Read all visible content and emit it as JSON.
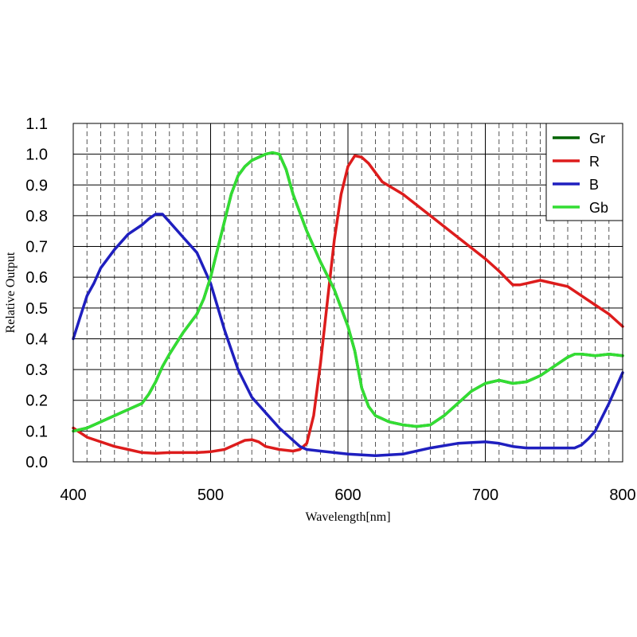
{
  "chart_data": {
    "type": "line",
    "title": "",
    "xlabel": "Wavelength[nm]",
    "ylabel": "Relative Output",
    "xlim": [
      400,
      800
    ],
    "ylim": [
      0.0,
      1.1
    ],
    "x_ticks": [
      400,
      500,
      600,
      700,
      800
    ],
    "y_ticks": [
      "0.0",
      "0.1",
      "0.2",
      "0.3",
      "0.4",
      "0.5",
      "0.6",
      "0.7",
      "0.8",
      "0.9",
      "1.0",
      "1.1"
    ],
    "grid": true,
    "legend_position": "top-right",
    "series": [
      {
        "name": "Gr",
        "color": "#006400",
        "points": [
          [
            400,
            0.1
          ],
          [
            410,
            0.11
          ],
          [
            420,
            0.13
          ],
          [
            430,
            0.15
          ],
          [
            440,
            0.17
          ],
          [
            450,
            0.19
          ],
          [
            455,
            0.22
          ],
          [
            460,
            0.26
          ],
          [
            465,
            0.31
          ],
          [
            470,
            0.35
          ],
          [
            480,
            0.42
          ],
          [
            490,
            0.48
          ],
          [
            495,
            0.53
          ],
          [
            500,
            0.6
          ],
          [
            505,
            0.69
          ],
          [
            510,
            0.78
          ],
          [
            515,
            0.87
          ],
          [
            520,
            0.93
          ],
          [
            525,
            0.96
          ],
          [
            530,
            0.98
          ],
          [
            535,
            0.99
          ],
          [
            540,
            1.0
          ],
          [
            545,
            1.005
          ],
          [
            550,
            1.0
          ],
          [
            555,
            0.95
          ],
          [
            560,
            0.87
          ],
          [
            570,
            0.75
          ],
          [
            580,
            0.65
          ],
          [
            590,
            0.56
          ],
          [
            600,
            0.44
          ],
          [
            605,
            0.36
          ],
          [
            610,
            0.24
          ],
          [
            615,
            0.18
          ],
          [
            620,
            0.15
          ],
          [
            630,
            0.13
          ],
          [
            640,
            0.12
          ],
          [
            650,
            0.115
          ],
          [
            660,
            0.12
          ],
          [
            670,
            0.15
          ],
          [
            680,
            0.19
          ],
          [
            690,
            0.23
          ],
          [
            700,
            0.255
          ],
          [
            710,
            0.265
          ],
          [
            715,
            0.26
          ],
          [
            720,
            0.255
          ],
          [
            730,
            0.26
          ],
          [
            740,
            0.28
          ],
          [
            750,
            0.31
          ],
          [
            760,
            0.34
          ],
          [
            765,
            0.35
          ],
          [
            770,
            0.35
          ],
          [
            780,
            0.345
          ],
          [
            790,
            0.35
          ],
          [
            800,
            0.345
          ]
        ]
      },
      {
        "name": "R",
        "color": "#dd1c1c",
        "points": [
          [
            400,
            0.11
          ],
          [
            410,
            0.08
          ],
          [
            420,
            0.065
          ],
          [
            430,
            0.05
          ],
          [
            440,
            0.04
          ],
          [
            450,
            0.03
          ],
          [
            460,
            0.028
          ],
          [
            470,
            0.03
          ],
          [
            480,
            0.03
          ],
          [
            490,
            0.03
          ],
          [
            500,
            0.033
          ],
          [
            510,
            0.04
          ],
          [
            520,
            0.06
          ],
          [
            525,
            0.07
          ],
          [
            530,
            0.072
          ],
          [
            535,
            0.065
          ],
          [
            540,
            0.05
          ],
          [
            550,
            0.04
          ],
          [
            560,
            0.035
          ],
          [
            565,
            0.04
          ],
          [
            570,
            0.06
          ],
          [
            575,
            0.15
          ],
          [
            580,
            0.32
          ],
          [
            585,
            0.52
          ],
          [
            590,
            0.72
          ],
          [
            595,
            0.87
          ],
          [
            600,
            0.96
          ],
          [
            605,
            0.995
          ],
          [
            610,
            0.99
          ],
          [
            615,
            0.97
          ],
          [
            620,
            0.94
          ],
          [
            625,
            0.91
          ],
          [
            640,
            0.87
          ],
          [
            660,
            0.8
          ],
          [
            680,
            0.73
          ],
          [
            700,
            0.66
          ],
          [
            710,
            0.62
          ],
          [
            720,
            0.575
          ],
          [
            725,
            0.575
          ],
          [
            730,
            0.58
          ],
          [
            740,
            0.59
          ],
          [
            745,
            0.585
          ],
          [
            760,
            0.57
          ],
          [
            770,
            0.54
          ],
          [
            780,
            0.51
          ],
          [
            790,
            0.48
          ],
          [
            800,
            0.44
          ]
        ]
      },
      {
        "name": "B",
        "color": "#1f1fbf",
        "points": [
          [
            400,
            0.4
          ],
          [
            405,
            0.47
          ],
          [
            410,
            0.54
          ],
          [
            415,
            0.58
          ],
          [
            420,
            0.63
          ],
          [
            430,
            0.69
          ],
          [
            440,
            0.74
          ],
          [
            450,
            0.77
          ],
          [
            455,
            0.79
          ],
          [
            460,
            0.805
          ],
          [
            465,
            0.805
          ],
          [
            470,
            0.78
          ],
          [
            480,
            0.73
          ],
          [
            490,
            0.68
          ],
          [
            495,
            0.63
          ],
          [
            500,
            0.58
          ],
          [
            510,
            0.43
          ],
          [
            520,
            0.3
          ],
          [
            530,
            0.21
          ],
          [
            540,
            0.16
          ],
          [
            550,
            0.11
          ],
          [
            560,
            0.07
          ],
          [
            565,
            0.05
          ],
          [
            570,
            0.04
          ],
          [
            580,
            0.035
          ],
          [
            590,
            0.03
          ],
          [
            600,
            0.025
          ],
          [
            620,
            0.02
          ],
          [
            640,
            0.025
          ],
          [
            660,
            0.045
          ],
          [
            680,
            0.06
          ],
          [
            700,
            0.065
          ],
          [
            710,
            0.06
          ],
          [
            720,
            0.05
          ],
          [
            730,
            0.045
          ],
          [
            750,
            0.045
          ],
          [
            765,
            0.045
          ],
          [
            770,
            0.055
          ],
          [
            775,
            0.075
          ],
          [
            780,
            0.1
          ],
          [
            790,
            0.19
          ],
          [
            800,
            0.29
          ]
        ]
      },
      {
        "name": "Gb",
        "color": "#33dd33",
        "points": [
          [
            400,
            0.1
          ],
          [
            410,
            0.11
          ],
          [
            420,
            0.13
          ],
          [
            430,
            0.15
          ],
          [
            440,
            0.17
          ],
          [
            450,
            0.19
          ],
          [
            455,
            0.22
          ],
          [
            460,
            0.26
          ],
          [
            465,
            0.31
          ],
          [
            470,
            0.35
          ],
          [
            480,
            0.42
          ],
          [
            490,
            0.48
          ],
          [
            495,
            0.53
          ],
          [
            500,
            0.6
          ],
          [
            505,
            0.69
          ],
          [
            510,
            0.78
          ],
          [
            515,
            0.87
          ],
          [
            520,
            0.93
          ],
          [
            525,
            0.96
          ],
          [
            530,
            0.98
          ],
          [
            535,
            0.99
          ],
          [
            540,
            1.0
          ],
          [
            545,
            1.005
          ],
          [
            550,
            1.0
          ],
          [
            555,
            0.95
          ],
          [
            560,
            0.87
          ],
          [
            570,
            0.75
          ],
          [
            580,
            0.65
          ],
          [
            590,
            0.56
          ],
          [
            600,
            0.44
          ],
          [
            605,
            0.36
          ],
          [
            610,
            0.24
          ],
          [
            615,
            0.18
          ],
          [
            620,
            0.15
          ],
          [
            630,
            0.13
          ],
          [
            640,
            0.12
          ],
          [
            650,
            0.115
          ],
          [
            660,
            0.12
          ],
          [
            670,
            0.15
          ],
          [
            680,
            0.19
          ],
          [
            690,
            0.23
          ],
          [
            700,
            0.255
          ],
          [
            710,
            0.265
          ],
          [
            715,
            0.26
          ],
          [
            720,
            0.255
          ],
          [
            730,
            0.26
          ],
          [
            740,
            0.28
          ],
          [
            750,
            0.31
          ],
          [
            760,
            0.34
          ],
          [
            765,
            0.35
          ],
          [
            770,
            0.35
          ],
          [
            780,
            0.345
          ],
          [
            790,
            0.35
          ],
          [
            800,
            0.345
          ]
        ]
      }
    ]
  }
}
